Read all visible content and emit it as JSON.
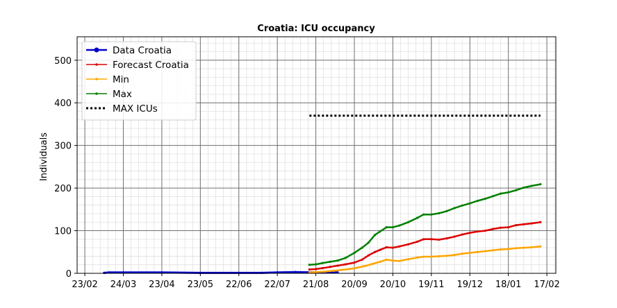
{
  "chart_data": {
    "type": "line",
    "title": "Croatia: ICU occupancy",
    "xlabel": "",
    "ylabel": "Individuals",
    "x_type": "date",
    "xlim": [
      "2020-02-17",
      "2021-02-24"
    ],
    "ylim": [
      0,
      555
    ],
    "grid": true,
    "minor_grid": true,
    "legend_position": "upper-left",
    "x_ticks": [
      {
        "date": "2020-02-23",
        "label": "23/02"
      },
      {
        "date": "2020-03-24",
        "label": "24/03"
      },
      {
        "date": "2020-04-23",
        "label": "23/04"
      },
      {
        "date": "2020-05-23",
        "label": "23/05"
      },
      {
        "date": "2020-06-22",
        "label": "22/06"
      },
      {
        "date": "2020-07-22",
        "label": "22/07"
      },
      {
        "date": "2020-08-21",
        "label": "21/08"
      },
      {
        "date": "2020-09-20",
        "label": "20/09"
      },
      {
        "date": "2020-10-20",
        "label": "20/10"
      },
      {
        "date": "2020-11-19",
        "label": "19/11"
      },
      {
        "date": "2020-12-19",
        "label": "19/12"
      },
      {
        "date": "2021-01-18",
        "label": "18/01"
      },
      {
        "date": "2021-02-17",
        "label": "17/02"
      }
    ],
    "y_ticks": [
      0,
      100,
      200,
      300,
      400,
      500
    ],
    "series": [
      {
        "name": "Data Croatia",
        "color": "#0000cc",
        "style": "solid-thick",
        "points": [
          [
            "2020-03-09",
            1
          ],
          [
            "2020-03-13",
            2
          ],
          [
            "2020-03-24",
            2
          ],
          [
            "2020-04-23",
            2
          ],
          [
            "2020-05-23",
            1
          ],
          [
            "2020-06-22",
            1
          ],
          [
            "2020-07-10",
            1
          ],
          [
            "2020-07-22",
            2
          ],
          [
            "2020-08-05",
            3
          ],
          [
            "2020-08-21",
            2
          ],
          [
            "2020-09-07",
            2
          ]
        ]
      },
      {
        "name": "Forecast Croatia",
        "color": "#dd0000",
        "style": "solid-dots",
        "points": [
          [
            "2020-08-16",
            9
          ],
          [
            "2020-08-21",
            10
          ],
          [
            "2020-08-26",
            12
          ],
          [
            "2020-09-01",
            15
          ],
          [
            "2020-09-07",
            18
          ],
          [
            "2020-09-13",
            21
          ],
          [
            "2020-09-20",
            25
          ],
          [
            "2020-09-26",
            32
          ],
          [
            "2020-10-01",
            42
          ],
          [
            "2020-10-06",
            50
          ],
          [
            "2020-10-10",
            55
          ],
          [
            "2020-10-15",
            61
          ],
          [
            "2020-10-20",
            60
          ],
          [
            "2020-10-25",
            63
          ],
          [
            "2020-11-01",
            68
          ],
          [
            "2020-11-08",
            74
          ],
          [
            "2020-11-13",
            80
          ],
          [
            "2020-11-19",
            80
          ],
          [
            "2020-11-25",
            79
          ],
          [
            "2020-12-01",
            82
          ],
          [
            "2020-12-07",
            86
          ],
          [
            "2020-12-13",
            91
          ],
          [
            "2020-12-19",
            95
          ],
          [
            "2020-12-25",
            98
          ],
          [
            "2020-12-31",
            100
          ],
          [
            "2021-01-06",
            104
          ],
          [
            "2021-01-12",
            107
          ],
          [
            "2021-01-18",
            108
          ],
          [
            "2021-01-24",
            113
          ],
          [
            "2021-01-30",
            115
          ],
          [
            "2021-02-05",
            117
          ],
          [
            "2021-02-12",
            120
          ]
        ]
      },
      {
        "name": "Min",
        "color": "#ffa500",
        "style": "solid-dots",
        "points": [
          [
            "2020-08-16",
            2
          ],
          [
            "2020-08-21",
            3
          ],
          [
            "2020-08-28",
            4
          ],
          [
            "2020-09-04",
            6
          ],
          [
            "2020-09-10",
            8
          ],
          [
            "2020-09-16",
            10
          ],
          [
            "2020-09-22",
            13
          ],
          [
            "2020-09-28",
            17
          ],
          [
            "2020-10-04",
            22
          ],
          [
            "2020-10-10",
            27
          ],
          [
            "2020-10-15",
            32
          ],
          [
            "2020-10-20",
            30
          ],
          [
            "2020-10-25",
            29
          ],
          [
            "2020-11-01",
            33
          ],
          [
            "2020-11-08",
            37
          ],
          [
            "2020-11-13",
            39
          ],
          [
            "2020-11-19",
            39
          ],
          [
            "2020-11-25",
            40
          ],
          [
            "2020-12-01",
            41
          ],
          [
            "2020-12-07",
            43
          ],
          [
            "2020-12-13",
            46
          ],
          [
            "2020-12-19",
            48
          ],
          [
            "2020-12-25",
            50
          ],
          [
            "2020-12-31",
            52
          ],
          [
            "2021-01-06",
            54
          ],
          [
            "2021-01-12",
            56
          ],
          [
            "2021-01-18",
            57
          ],
          [
            "2021-01-24",
            59
          ],
          [
            "2021-01-30",
            60
          ],
          [
            "2021-02-05",
            61
          ],
          [
            "2021-02-12",
            63
          ]
        ]
      },
      {
        "name": "Max",
        "color": "#008000",
        "style": "solid-dots",
        "points": [
          [
            "2020-08-16",
            20
          ],
          [
            "2020-08-21",
            21
          ],
          [
            "2020-08-26",
            24
          ],
          [
            "2020-09-01",
            27
          ],
          [
            "2020-09-07",
            30
          ],
          [
            "2020-09-13",
            36
          ],
          [
            "2020-09-20",
            48
          ],
          [
            "2020-09-26",
            60
          ],
          [
            "2020-10-01",
            72
          ],
          [
            "2020-10-06",
            90
          ],
          [
            "2020-10-10",
            98
          ],
          [
            "2020-10-15",
            108
          ],
          [
            "2020-10-20",
            108
          ],
          [
            "2020-10-25",
            112
          ],
          [
            "2020-11-01",
            120
          ],
          [
            "2020-11-08",
            130
          ],
          [
            "2020-11-13",
            138
          ],
          [
            "2020-11-19",
            138
          ],
          [
            "2020-11-25",
            141
          ],
          [
            "2020-12-01",
            146
          ],
          [
            "2020-12-07",
            153
          ],
          [
            "2020-12-13",
            159
          ],
          [
            "2020-12-19",
            164
          ],
          [
            "2020-12-25",
            170
          ],
          [
            "2020-12-31",
            175
          ],
          [
            "2021-01-06",
            181
          ],
          [
            "2021-01-12",
            187
          ],
          [
            "2021-01-18",
            190
          ],
          [
            "2021-01-24",
            195
          ],
          [
            "2021-01-30",
            201
          ],
          [
            "2021-02-05",
            205
          ],
          [
            "2021-02-12",
            209
          ]
        ]
      },
      {
        "name": "MAX ICUs",
        "color": "#000000",
        "style": "dotted",
        "points": [
          [
            "2020-08-16",
            370
          ],
          [
            "2021-02-12",
            370
          ]
        ]
      }
    ]
  }
}
